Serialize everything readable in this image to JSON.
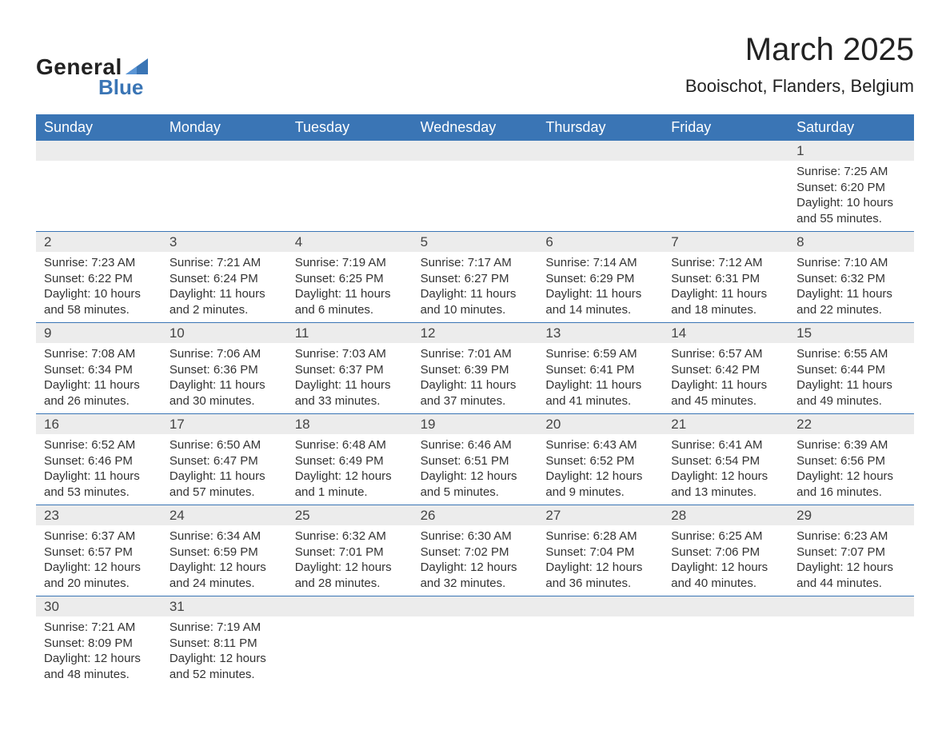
{
  "brand": {
    "general": "General",
    "blue": "Blue",
    "logo_color": "#3a75b5"
  },
  "header": {
    "month_title": "March 2025",
    "location": "Booischot, Flanders, Belgium"
  },
  "colors": {
    "header_bg": "#3a75b5",
    "header_text": "#ffffff",
    "daynum_bg": "#ececec",
    "text": "#333333",
    "row_border": "#3a75b5"
  },
  "weekdays": [
    "Sunday",
    "Monday",
    "Tuesday",
    "Wednesday",
    "Thursday",
    "Friday",
    "Saturday"
  ],
  "labels": {
    "sunrise": "Sunrise:",
    "sunset": "Sunset:",
    "daylight": "Daylight:"
  },
  "weeks": [
    [
      null,
      null,
      null,
      null,
      null,
      null,
      {
        "day": "1",
        "sunrise": "7:25 AM",
        "sunset": "6:20 PM",
        "daylight": "10 hours and 55 minutes."
      }
    ],
    [
      {
        "day": "2",
        "sunrise": "7:23 AM",
        "sunset": "6:22 PM",
        "daylight": "10 hours and 58 minutes."
      },
      {
        "day": "3",
        "sunrise": "7:21 AM",
        "sunset": "6:24 PM",
        "daylight": "11 hours and 2 minutes."
      },
      {
        "day": "4",
        "sunrise": "7:19 AM",
        "sunset": "6:25 PM",
        "daylight": "11 hours and 6 minutes."
      },
      {
        "day": "5",
        "sunrise": "7:17 AM",
        "sunset": "6:27 PM",
        "daylight": "11 hours and 10 minutes."
      },
      {
        "day": "6",
        "sunrise": "7:14 AM",
        "sunset": "6:29 PM",
        "daylight": "11 hours and 14 minutes."
      },
      {
        "day": "7",
        "sunrise": "7:12 AM",
        "sunset": "6:31 PM",
        "daylight": "11 hours and 18 minutes."
      },
      {
        "day": "8",
        "sunrise": "7:10 AM",
        "sunset": "6:32 PM",
        "daylight": "11 hours and 22 minutes."
      }
    ],
    [
      {
        "day": "9",
        "sunrise": "7:08 AM",
        "sunset": "6:34 PM",
        "daylight": "11 hours and 26 minutes."
      },
      {
        "day": "10",
        "sunrise": "7:06 AM",
        "sunset": "6:36 PM",
        "daylight": "11 hours and 30 minutes."
      },
      {
        "day": "11",
        "sunrise": "7:03 AM",
        "sunset": "6:37 PM",
        "daylight": "11 hours and 33 minutes."
      },
      {
        "day": "12",
        "sunrise": "7:01 AM",
        "sunset": "6:39 PM",
        "daylight": "11 hours and 37 minutes."
      },
      {
        "day": "13",
        "sunrise": "6:59 AM",
        "sunset": "6:41 PM",
        "daylight": "11 hours and 41 minutes."
      },
      {
        "day": "14",
        "sunrise": "6:57 AM",
        "sunset": "6:42 PM",
        "daylight": "11 hours and 45 minutes."
      },
      {
        "day": "15",
        "sunrise": "6:55 AM",
        "sunset": "6:44 PM",
        "daylight": "11 hours and 49 minutes."
      }
    ],
    [
      {
        "day": "16",
        "sunrise": "6:52 AM",
        "sunset": "6:46 PM",
        "daylight": "11 hours and 53 minutes."
      },
      {
        "day": "17",
        "sunrise": "6:50 AM",
        "sunset": "6:47 PM",
        "daylight": "11 hours and 57 minutes."
      },
      {
        "day": "18",
        "sunrise": "6:48 AM",
        "sunset": "6:49 PM",
        "daylight": "12 hours and 1 minute."
      },
      {
        "day": "19",
        "sunrise": "6:46 AM",
        "sunset": "6:51 PM",
        "daylight": "12 hours and 5 minutes."
      },
      {
        "day": "20",
        "sunrise": "6:43 AM",
        "sunset": "6:52 PM",
        "daylight": "12 hours and 9 minutes."
      },
      {
        "day": "21",
        "sunrise": "6:41 AM",
        "sunset": "6:54 PM",
        "daylight": "12 hours and 13 minutes."
      },
      {
        "day": "22",
        "sunrise": "6:39 AM",
        "sunset": "6:56 PM",
        "daylight": "12 hours and 16 minutes."
      }
    ],
    [
      {
        "day": "23",
        "sunrise": "6:37 AM",
        "sunset": "6:57 PM",
        "daylight": "12 hours and 20 minutes."
      },
      {
        "day": "24",
        "sunrise": "6:34 AM",
        "sunset": "6:59 PM",
        "daylight": "12 hours and 24 minutes."
      },
      {
        "day": "25",
        "sunrise": "6:32 AM",
        "sunset": "7:01 PM",
        "daylight": "12 hours and 28 minutes."
      },
      {
        "day": "26",
        "sunrise": "6:30 AM",
        "sunset": "7:02 PM",
        "daylight": "12 hours and 32 minutes."
      },
      {
        "day": "27",
        "sunrise": "6:28 AM",
        "sunset": "7:04 PM",
        "daylight": "12 hours and 36 minutes."
      },
      {
        "day": "28",
        "sunrise": "6:25 AM",
        "sunset": "7:06 PM",
        "daylight": "12 hours and 40 minutes."
      },
      {
        "day": "29",
        "sunrise": "6:23 AM",
        "sunset": "7:07 PM",
        "daylight": "12 hours and 44 minutes."
      }
    ],
    [
      {
        "day": "30",
        "sunrise": "7:21 AM",
        "sunset": "8:09 PM",
        "daylight": "12 hours and 48 minutes."
      },
      {
        "day": "31",
        "sunrise": "7:19 AM",
        "sunset": "8:11 PM",
        "daylight": "12 hours and 52 minutes."
      },
      null,
      null,
      null,
      null,
      null
    ]
  ]
}
